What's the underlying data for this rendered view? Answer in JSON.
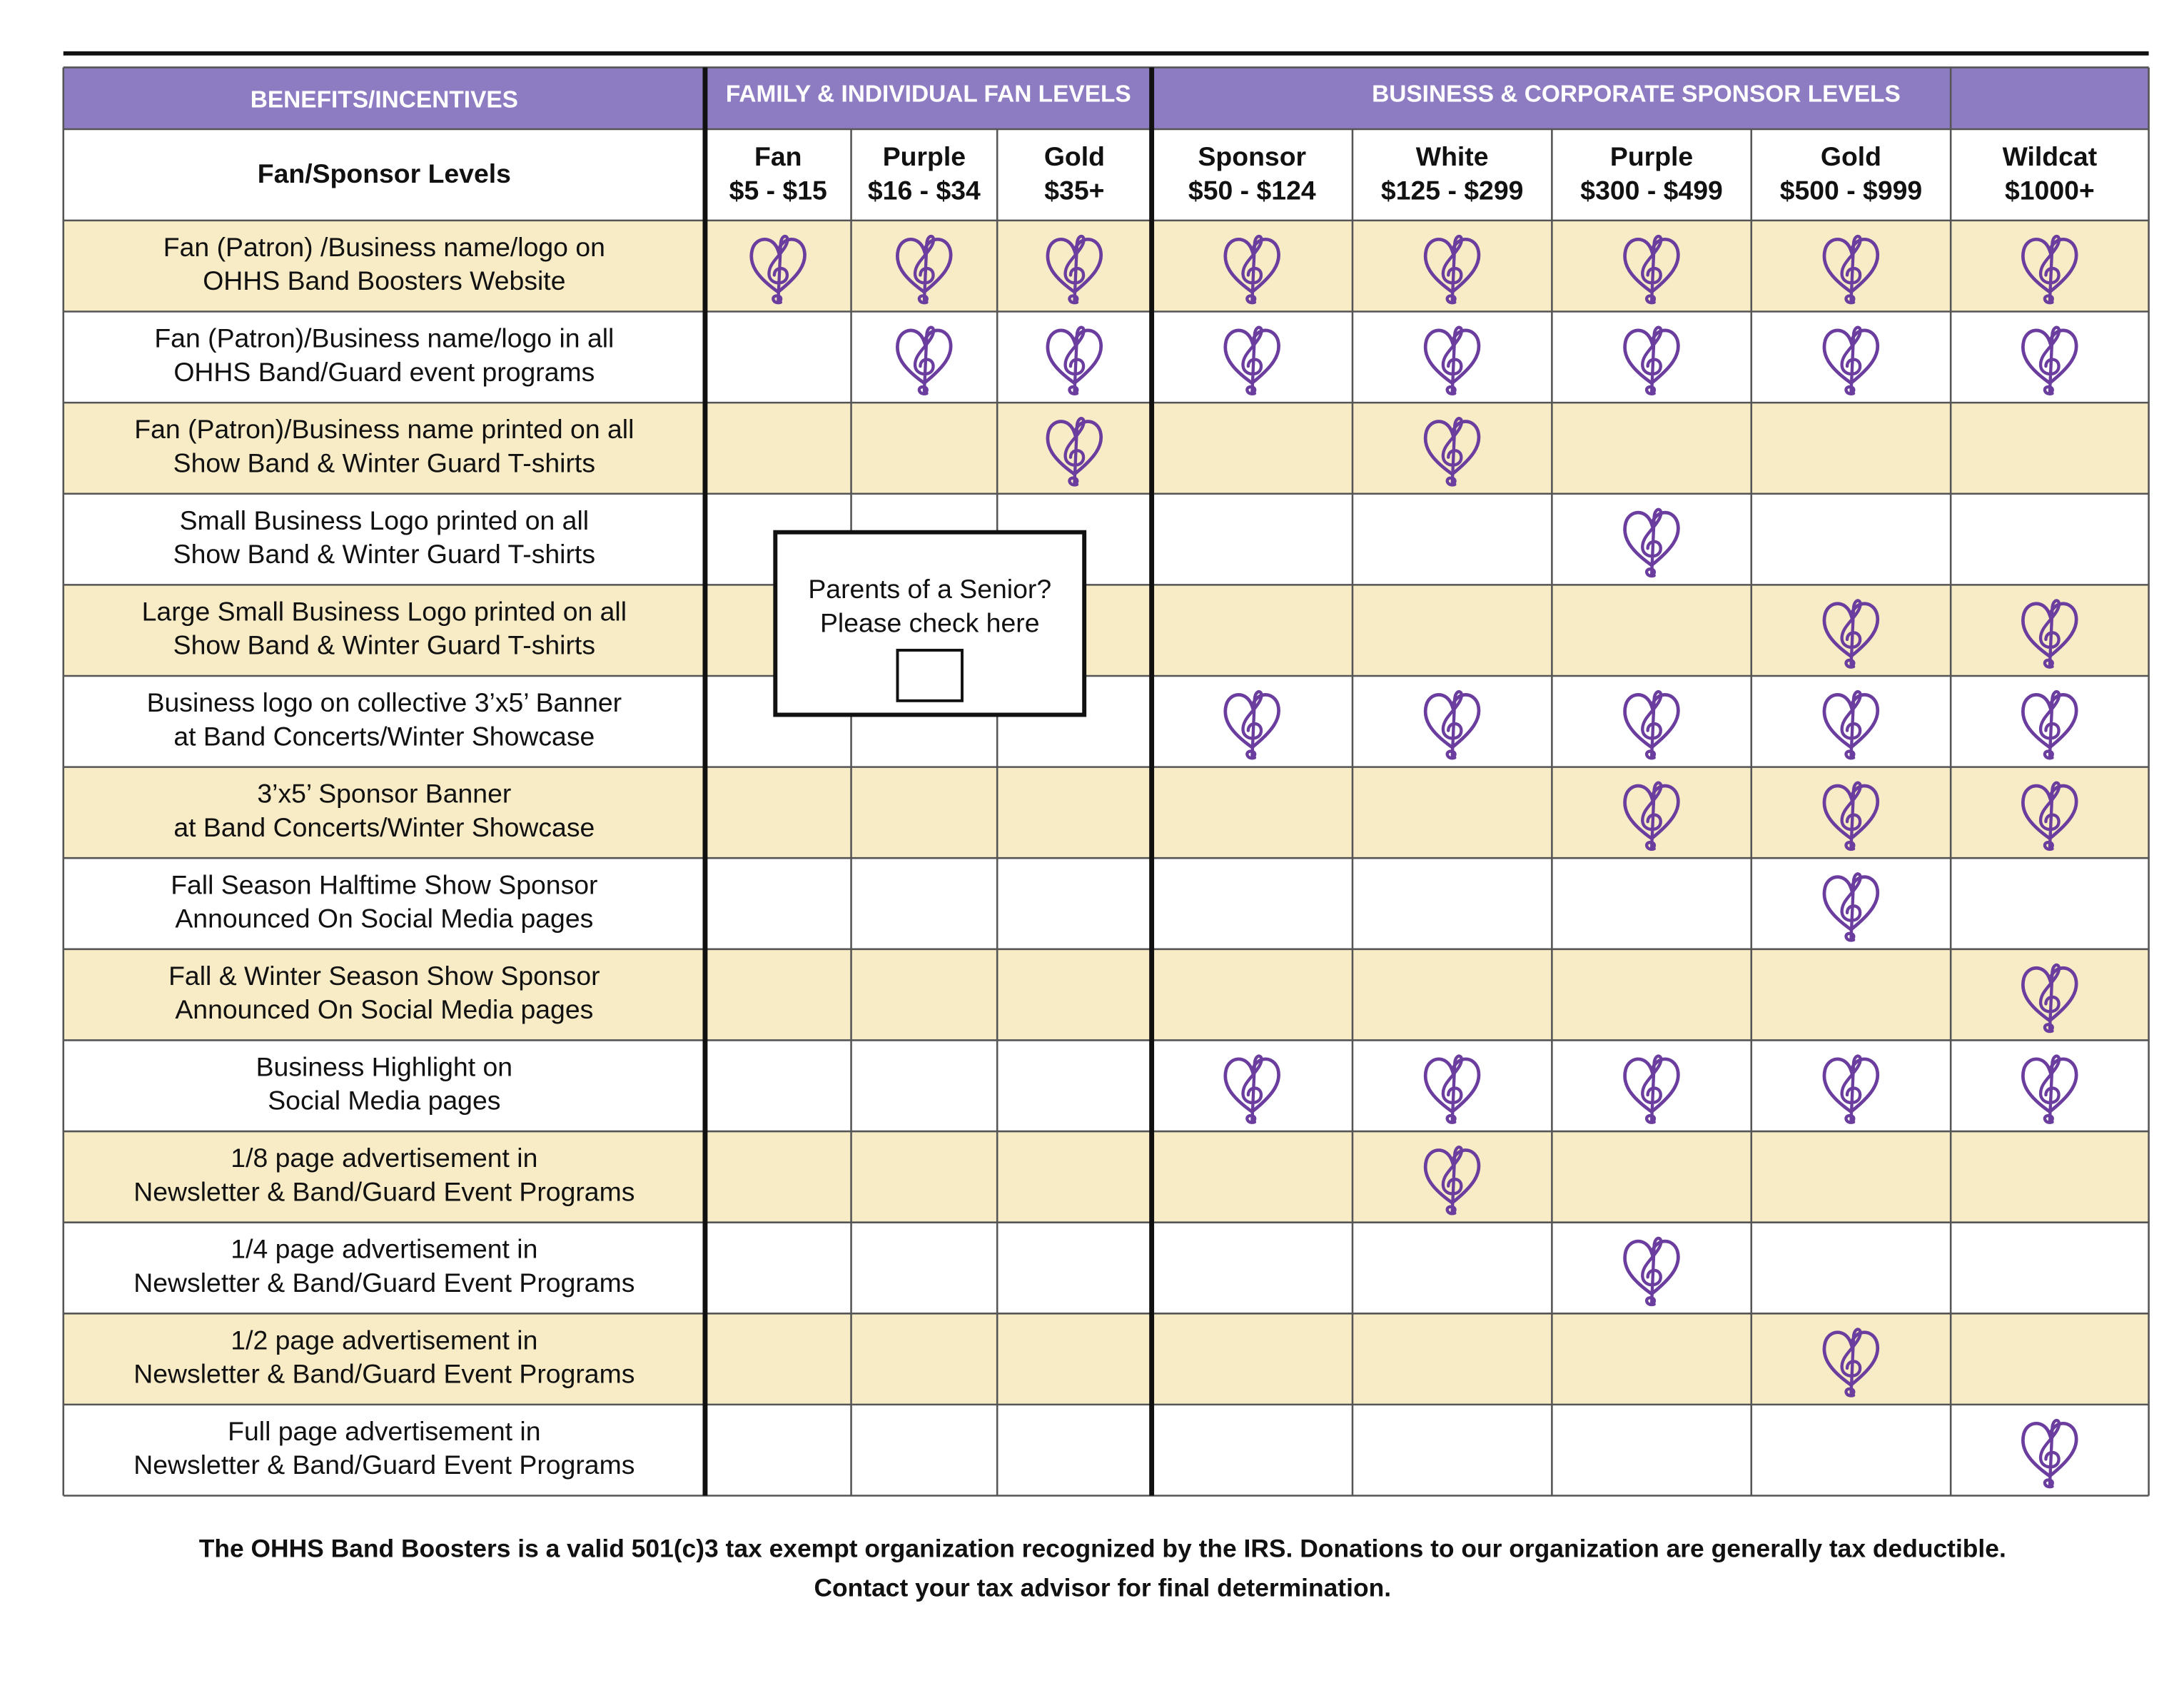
{
  "header": {
    "benefits": "BENEFITS/INCENTIVES",
    "family_group": "FAMILY & INDIVIDUAL FAN LEVELS",
    "business_group": "BUSINESS & CORPORATE SPONSOR LEVELS",
    "levels_label": "Fan/Sponsor Levels"
  },
  "levels": [
    {
      "name": "Fan",
      "range": "$5 - $15"
    },
    {
      "name": "Purple",
      "range": "$16 - $34"
    },
    {
      "name": "Gold",
      "range": "$35+"
    },
    {
      "name": "Sponsor",
      "range": "$50 - $124"
    },
    {
      "name": "White",
      "range": "$125 - $299"
    },
    {
      "name": "Purple",
      "range": "$300 - $499"
    },
    {
      "name": "Gold",
      "range": "$500 - $999"
    },
    {
      "name": "Wildcat",
      "range": "$1000+"
    }
  ],
  "rows": [
    {
      "lines": [
        "Fan (Patron) /Business name/logo on",
        "OHHS Band Boosters Website"
      ],
      "marks": [
        true,
        true,
        true,
        true,
        true,
        true,
        true,
        true
      ]
    },
    {
      "lines": [
        "Fan (Patron)/Business name/logo in all",
        "OHHS Band/Guard event programs"
      ],
      "marks": [
        false,
        true,
        true,
        true,
        true,
        true,
        true,
        true
      ]
    },
    {
      "lines": [
        "Fan (Patron)/Business name printed on all",
        "Show Band & Winter Guard T-shirts"
      ],
      "marks": [
        false,
        false,
        true,
        false,
        true,
        false,
        false,
        false
      ]
    },
    {
      "lines": [
        "Small Business Logo printed on all",
        "Show Band & Winter Guard T-shirts"
      ],
      "marks": [
        false,
        false,
        false,
        false,
        false,
        true,
        false,
        false
      ]
    },
    {
      "lines": [
        "Large Small Business Logo printed on all",
        "Show Band & Winter Guard T-shirts"
      ],
      "marks": [
        false,
        false,
        false,
        false,
        false,
        false,
        true,
        true
      ]
    },
    {
      "lines": [
        "Business logo on collective 3’x5’ Banner",
        "at Band Concerts/Winter Showcase"
      ],
      "marks": [
        false,
        false,
        false,
        true,
        true,
        true,
        true,
        true
      ]
    },
    {
      "lines": [
        "3’x5’ Sponsor Banner",
        "at Band Concerts/Winter Showcase"
      ],
      "marks": [
        false,
        false,
        false,
        false,
        false,
        true,
        true,
        true
      ]
    },
    {
      "lines": [
        "Fall Season Halftime Show Sponsor",
        "Announced On Social Media pages"
      ],
      "marks": [
        false,
        false,
        false,
        false,
        false,
        false,
        true,
        false
      ]
    },
    {
      "lines": [
        "Fall & Winter Season Show Sponsor",
        "Announced On Social Media pages"
      ],
      "marks": [
        false,
        false,
        false,
        false,
        false,
        false,
        false,
        true
      ]
    },
    {
      "lines": [
        "Business Highlight on",
        "Social Media pages"
      ],
      "marks": [
        false,
        false,
        false,
        true,
        true,
        true,
        true,
        true
      ]
    },
    {
      "lines": [
        "1/8 page advertisement in",
        "Newsletter & Band/Guard Event Programs"
      ],
      "marks": [
        false,
        false,
        false,
        false,
        true,
        false,
        false,
        false
      ]
    },
    {
      "lines": [
        "1/4 page advertisement in",
        "Newsletter & Band/Guard Event Programs"
      ],
      "marks": [
        false,
        false,
        false,
        false,
        false,
        true,
        false,
        false
      ]
    },
    {
      "lines": [
        "1/2 page advertisement in",
        "Newsletter & Band/Guard Event Programs"
      ],
      "marks": [
        false,
        false,
        false,
        false,
        false,
        false,
        true,
        false
      ]
    },
    {
      "lines": [
        "Full page advertisement in",
        "Newsletter & Band/Guard Event Programs"
      ],
      "marks": [
        false,
        false,
        false,
        false,
        false,
        false,
        false,
        true
      ]
    }
  ],
  "popup": {
    "lines": [
      "Parents of a Senior?",
      "Please check here"
    ]
  },
  "footer": [
    "The OHHS Band Boosters is a valid 501(c)3 tax exempt organization recognized by the IRS. Donations to our organization are generally tax deductible.",
    "Contact your tax advisor for final determination."
  ]
}
